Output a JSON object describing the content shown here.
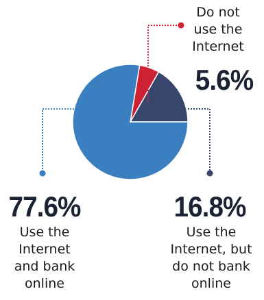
{
  "chart_data": {
    "type": "pie",
    "slices": [
      {
        "value": 77.6,
        "value_label": "77.6%",
        "label": "Use the Internet and bank online",
        "color": "#3a7fbf"
      },
      {
        "value": 16.8,
        "value_label": "16.8%",
        "label": "Use the Internet, but do not bank online",
        "color": "#37476b"
      },
      {
        "value": 5.6,
        "value_label": "5.6%",
        "label": "Do not use the Internet",
        "color": "#cc2233"
      }
    ],
    "label_lines": {
      "bank_online": [
        "Use the",
        "Internet",
        "and bank",
        "online"
      ],
      "no_bank": [
        "Use the",
        "Internet, but",
        "do not bank",
        "online"
      ],
      "no_internet": [
        "Do not",
        "use the",
        "Internet"
      ]
    },
    "colors": {
      "marker_blue": "#3a7fbf",
      "marker_dark": "#37476b",
      "marker_red": "#cc2233"
    }
  }
}
